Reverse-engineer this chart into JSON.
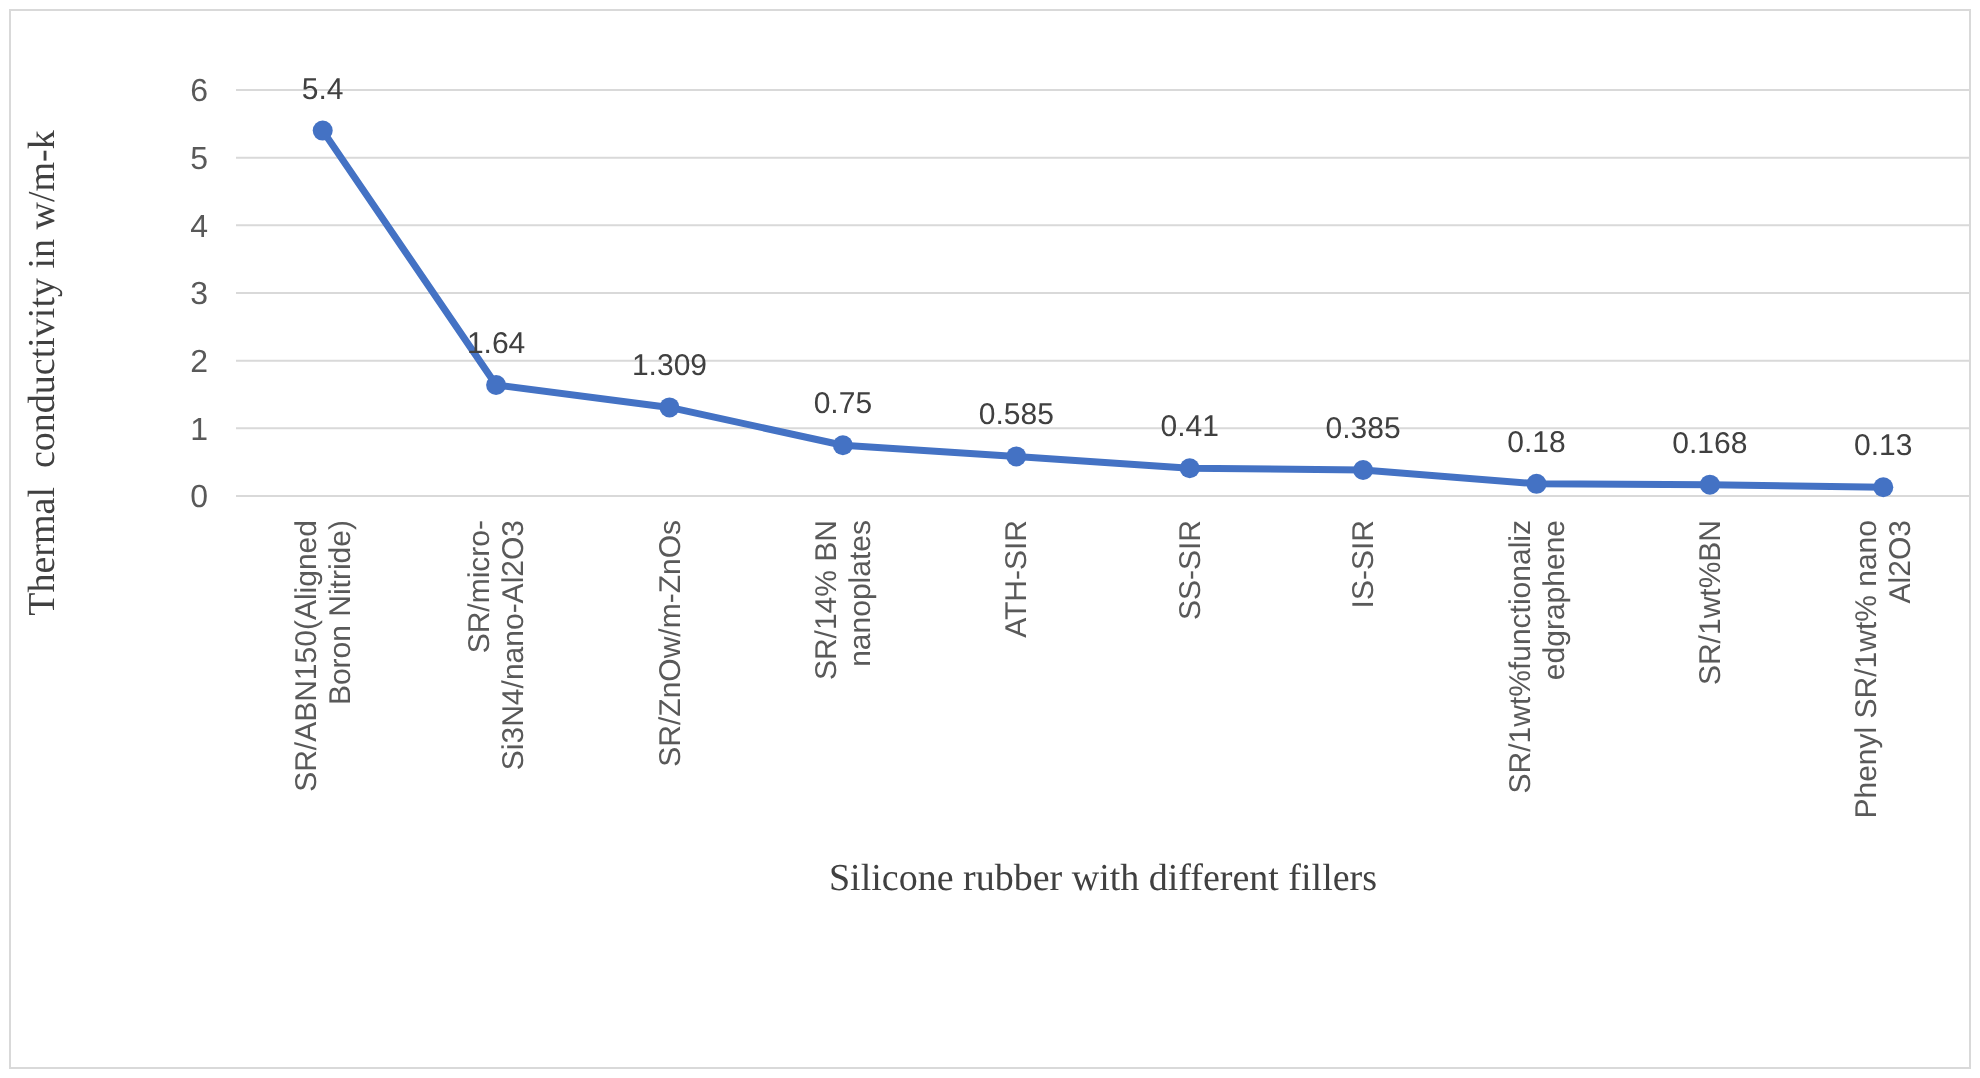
{
  "chart_data": {
    "type": "line",
    "xlabel": "Silicone rubber with different fillers",
    "ylabel": "Thermal  conductivity in w/m-k",
    "categories": [
      "SR/ABN150(Aligned Boron Nitride)",
      "SR/micro- Si3N4/nano-Al2O3",
      "SR/ZnOw/m-ZnOs",
      "SR/14% BN nanoplates",
      "ATH-SIR",
      "SS-SIR",
      "IS-SIR",
      "SR/1wt%functionaliz edgraphene",
      "SR/1wt%BN",
      "Phenyl SR/1wt% nano Al2O3"
    ],
    "series": [
      {
        "color": "#4472c4",
        "values": [
          5.4,
          1.64,
          1.309,
          0.75,
          0.585,
          0.41,
          0.385,
          0.18,
          0.168,
          0.13
        ]
      }
    ],
    "ylim": [
      0,
      6
    ],
    "yticks": [
      0,
      1,
      2,
      3,
      4,
      5,
      6
    ],
    "grid": "y",
    "marker": "circle",
    "line_style": "solid",
    "data_labels": true
  }
}
